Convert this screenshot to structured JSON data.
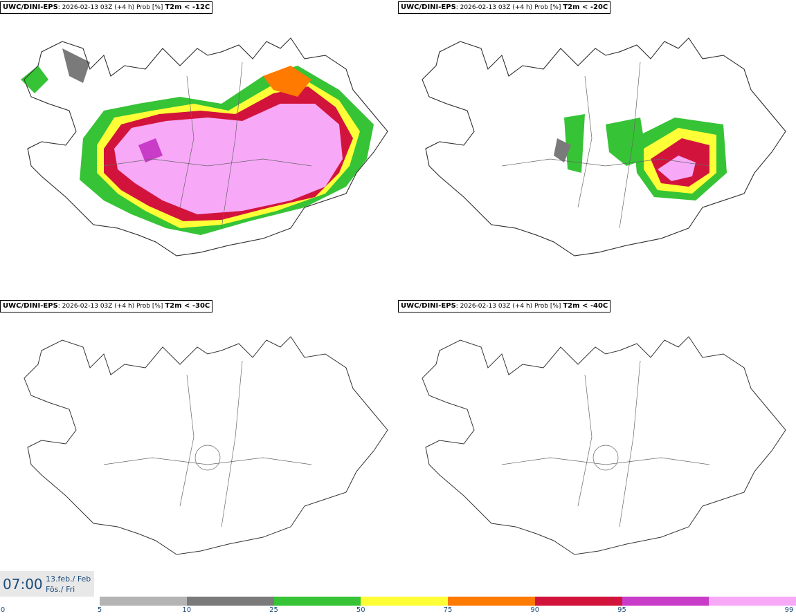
{
  "panels": [
    {
      "model": "UWC/DINI-EPS",
      "run": ": 2026-02-13 03Z (+4 h) Prob [%] ",
      "threshold": "T2m < -12C"
    },
    {
      "model": "UWC/DINI-EPS",
      "run": ": 2026-02-13 03Z (+4 h) Prob [%] ",
      "threshold": "T2m < -20C"
    },
    {
      "model": "UWC/DINI-EPS",
      "run": ": 2026-02-13 03Z (+4 h) Prob [%] ",
      "threshold": "T2m < -30C"
    },
    {
      "model": "UWC/DINI-EPS",
      "run": ": 2026-02-13 03Z (+4 h) Prob [%] ",
      "threshold": "T2m < -40C"
    }
  ],
  "clock": {
    "time": "07:00",
    "date_line1": "13.feb./ Feb",
    "date_line2": "Fös./ Fri"
  },
  "colorbar": {
    "ticks": [
      "0",
      "5",
      "10",
      "25",
      "50",
      "75",
      "90",
      "95",
      "99"
    ],
    "colors": [
      "#b4b4b4",
      "#7a7a7a",
      "#36c336",
      "#ffff38",
      "#ff7a00",
      "#d2143c",
      "#c83cc8",
      "#f7a8f7"
    ]
  }
}
